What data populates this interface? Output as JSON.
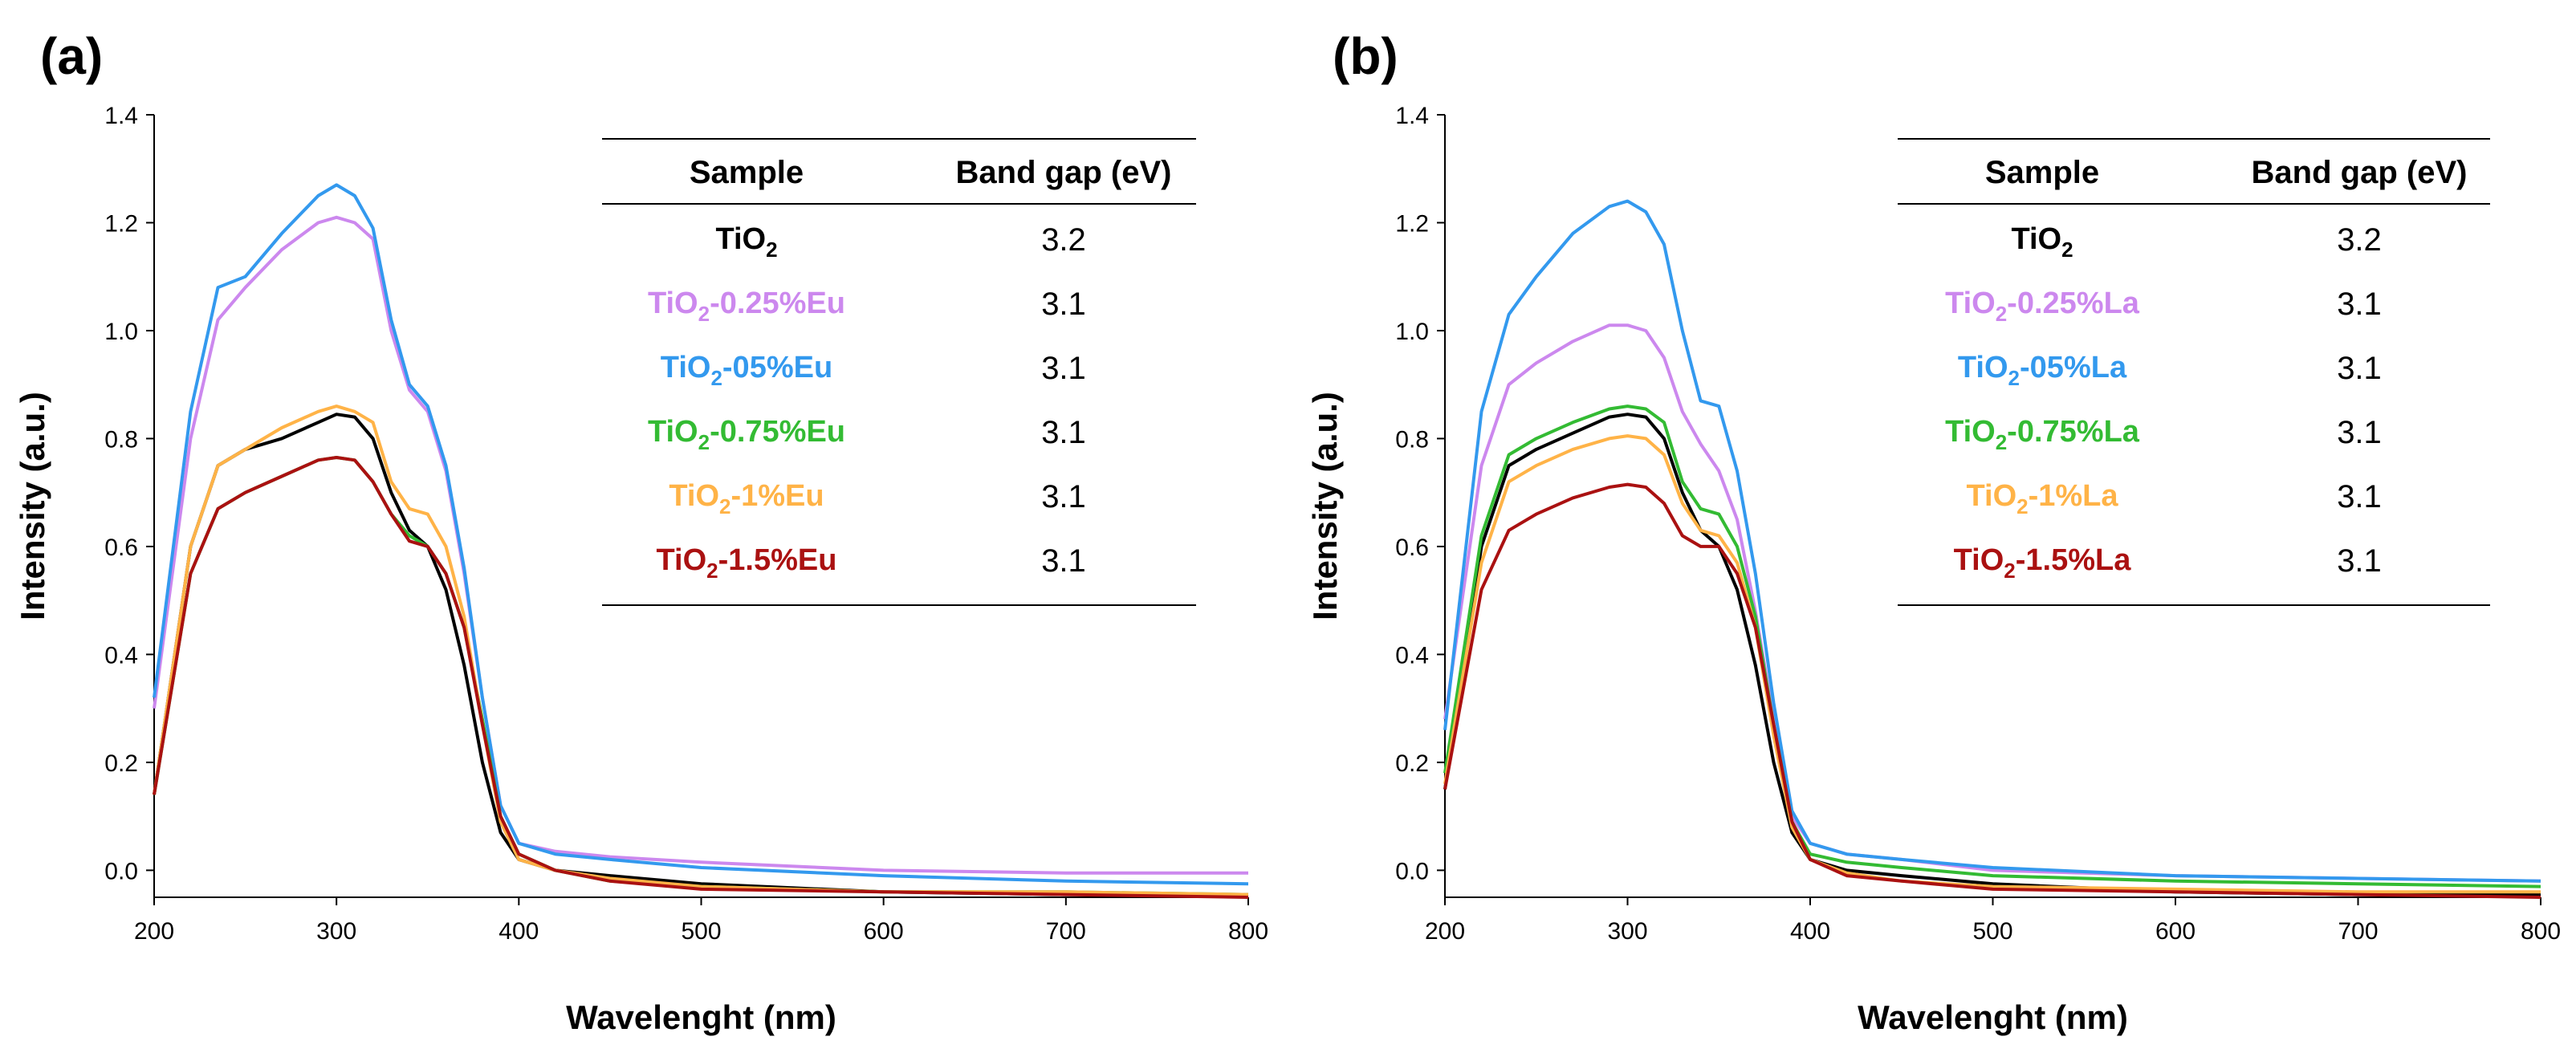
{
  "chart_data": [
    {
      "panel_label": "(a)",
      "type": "line",
      "xlabel": "Wavelenght (nm)",
      "ylabel": "Intensity (a.u.)",
      "xlim": [
        200,
        800
      ],
      "ylim": [
        -0.05,
        1.4
      ],
      "xticks": [
        "200",
        "300",
        "400",
        "500",
        "600",
        "700",
        "800"
      ],
      "yticks": [
        "0.0",
        "0.2",
        "0.4",
        "0.6",
        "0.8",
        "1.0",
        "1.2",
        "1.4"
      ],
      "x": [
        200,
        220,
        235,
        250,
        270,
        290,
        300,
        310,
        320,
        330,
        340,
        350,
        360,
        370,
        380,
        390,
        400,
        420,
        450,
        500,
        600,
        700,
        800
      ],
      "series": [
        {
          "name": "TiO2",
          "color": "#000000",
          "values": [
            0.14,
            0.6,
            0.75,
            0.78,
            0.8,
            0.83,
            0.845,
            0.84,
            0.8,
            0.7,
            0.63,
            0.6,
            0.52,
            0.38,
            0.2,
            0.07,
            0.02,
            0.0,
            -0.01,
            -0.025,
            -0.04,
            -0.045,
            -0.045
          ]
        },
        {
          "name": "TiO2-0.25%Eu",
          "color": "#CC88EE",
          "values": [
            0.3,
            0.8,
            1.02,
            1.08,
            1.15,
            1.2,
            1.21,
            1.2,
            1.17,
            1.0,
            0.89,
            0.85,
            0.74,
            0.55,
            0.32,
            0.12,
            0.05,
            0.035,
            0.025,
            0.015,
            0.0,
            -0.005,
            -0.005
          ]
        },
        {
          "name": "TiO2-05%Eu",
          "color": "#3399EE",
          "values": [
            0.32,
            0.85,
            1.08,
            1.1,
            1.18,
            1.25,
            1.27,
            1.25,
            1.19,
            1.02,
            0.9,
            0.86,
            0.75,
            0.56,
            0.32,
            0.12,
            0.05,
            0.03,
            0.02,
            0.005,
            -0.01,
            -0.02,
            -0.025
          ]
        },
        {
          "name": "TiO2-0.75%Eu",
          "color": "#33BB33",
          "values": [
            0.14,
            0.55,
            0.67,
            0.7,
            0.73,
            0.76,
            0.765,
            0.76,
            0.72,
            0.66,
            0.62,
            0.6,
            0.55,
            0.45,
            0.28,
            0.1,
            0.03,
            0.0,
            -0.02,
            -0.03,
            -0.04,
            -0.04,
            -0.045
          ]
        },
        {
          "name": "TiO2-1%Eu",
          "color": "#FFB347",
          "values": [
            0.14,
            0.6,
            0.75,
            0.78,
            0.82,
            0.85,
            0.86,
            0.85,
            0.83,
            0.72,
            0.67,
            0.66,
            0.6,
            0.47,
            0.27,
            0.09,
            0.02,
            0.0,
            -0.015,
            -0.03,
            -0.04,
            -0.04,
            -0.045
          ]
        },
        {
          "name": "TiO2-1.5%Eu",
          "color": "#AA1111",
          "values": [
            0.14,
            0.55,
            0.67,
            0.7,
            0.73,
            0.76,
            0.765,
            0.76,
            0.72,
            0.66,
            0.61,
            0.6,
            0.55,
            0.45,
            0.27,
            0.1,
            0.03,
            0.0,
            -0.02,
            -0.035,
            -0.04,
            -0.045,
            -0.05
          ]
        }
      ],
      "table": {
        "header_sample": "Sample",
        "header_gap": "Band gap (eV)",
        "rows": [
          {
            "main": "TiO",
            "sub": "2",
            "suffix": "",
            "gap": "3.2",
            "color": "#000000"
          },
          {
            "main": "TiO",
            "sub": "2",
            "suffix": "-0.25%Eu",
            "gap": "3.1",
            "color": "#CC88EE"
          },
          {
            "main": "TiO",
            "sub": "2",
            "suffix": "-05%Eu",
            "gap": "3.1",
            "color": "#3399EE"
          },
          {
            "main": "TiO",
            "sub": "2",
            "suffix": "-0.75%Eu",
            "gap": "3.1",
            "color": "#33BB33"
          },
          {
            "main": "TiO",
            "sub": "2",
            "suffix": "-1%Eu",
            "gap": "3.1",
            "color": "#FFB347"
          },
          {
            "main": "TiO",
            "sub": "2",
            "suffix": "-1.5%Eu",
            "gap": "3.1",
            "color": "#AA1111"
          }
        ]
      }
    },
    {
      "panel_label": "(b)",
      "type": "line",
      "xlabel": "Wavelenght (nm)",
      "ylabel": "Intensity (a.u.)",
      "xlim": [
        200,
        800
      ],
      "ylim": [
        -0.05,
        1.4
      ],
      "xticks": [
        "200",
        "300",
        "400",
        "500",
        "600",
        "700",
        "800"
      ],
      "yticks": [
        "0.0",
        "0.2",
        "0.4",
        "0.6",
        "0.8",
        "1.0",
        "1.2",
        "1.4"
      ],
      "x": [
        200,
        220,
        235,
        250,
        270,
        290,
        300,
        310,
        320,
        330,
        340,
        350,
        360,
        370,
        380,
        390,
        400,
        420,
        450,
        500,
        600,
        700,
        800
      ],
      "series": [
        {
          "name": "TiO2",
          "color": "#000000",
          "values": [
            0.15,
            0.6,
            0.75,
            0.78,
            0.81,
            0.84,
            0.845,
            0.84,
            0.8,
            0.7,
            0.63,
            0.6,
            0.52,
            0.38,
            0.2,
            0.07,
            0.02,
            0.0,
            -0.01,
            -0.025,
            -0.04,
            -0.045,
            -0.045
          ]
        },
        {
          "name": "TiO2-0.25%La",
          "color": "#CC88EE",
          "values": [
            0.28,
            0.75,
            0.9,
            0.94,
            0.98,
            1.01,
            1.01,
            1.0,
            0.95,
            0.85,
            0.79,
            0.74,
            0.65,
            0.48,
            0.28,
            0.1,
            0.05,
            0.03,
            0.02,
            0.0,
            -0.01,
            -0.015,
            -0.02
          ]
        },
        {
          "name": "TiO2-05%La",
          "color": "#3399EE",
          "values": [
            0.26,
            0.85,
            1.03,
            1.1,
            1.18,
            1.23,
            1.24,
            1.22,
            1.16,
            1.0,
            0.87,
            0.86,
            0.74,
            0.55,
            0.31,
            0.11,
            0.05,
            0.03,
            0.02,
            0.005,
            -0.01,
            -0.015,
            -0.02
          ]
        },
        {
          "name": "TiO2-0.75%La",
          "color": "#33BB33",
          "values": [
            0.18,
            0.62,
            0.77,
            0.8,
            0.83,
            0.855,
            0.86,
            0.855,
            0.83,
            0.72,
            0.67,
            0.66,
            0.6,
            0.47,
            0.27,
            0.09,
            0.03,
            0.015,
            0.005,
            -0.01,
            -0.02,
            -0.025,
            -0.03
          ]
        },
        {
          "name": "TiO2-1%La",
          "color": "#FFB347",
          "values": [
            0.16,
            0.57,
            0.72,
            0.75,
            0.78,
            0.8,
            0.805,
            0.8,
            0.77,
            0.68,
            0.63,
            0.62,
            0.57,
            0.45,
            0.25,
            0.08,
            0.02,
            -0.005,
            -0.02,
            -0.03,
            -0.035,
            -0.04,
            -0.04
          ]
        },
        {
          "name": "TiO2-1.5%La",
          "color": "#AA1111",
          "values": [
            0.15,
            0.52,
            0.63,
            0.66,
            0.69,
            0.71,
            0.715,
            0.71,
            0.68,
            0.62,
            0.6,
            0.6,
            0.55,
            0.45,
            0.27,
            0.09,
            0.02,
            -0.01,
            -0.02,
            -0.035,
            -0.04,
            -0.045,
            -0.05
          ]
        }
      ],
      "table": {
        "header_sample": "Sample",
        "header_gap": "Band gap (eV)",
        "rows": [
          {
            "main": "TiO",
            "sub": "2",
            "suffix": "",
            "gap": "3.2",
            "color": "#000000"
          },
          {
            "main": "TiO",
            "sub": "2",
            "suffix": "-0.25%La",
            "gap": "3.1",
            "color": "#CC88EE"
          },
          {
            "main": "TiO",
            "sub": "2",
            "suffix": "-05%La",
            "gap": "3.1",
            "color": "#3399EE"
          },
          {
            "main": "TiO",
            "sub": "2",
            "suffix": "-0.75%La",
            "gap": "3.1",
            "color": "#33BB33"
          },
          {
            "main": "TiO",
            "sub": "2",
            "suffix": "-1%La",
            "gap": "3.1",
            "color": "#FFB347"
          },
          {
            "main": "TiO",
            "sub": "2",
            "suffix": "-1.5%La",
            "gap": "3.1",
            "color": "#AA1111"
          }
        ]
      }
    }
  ]
}
